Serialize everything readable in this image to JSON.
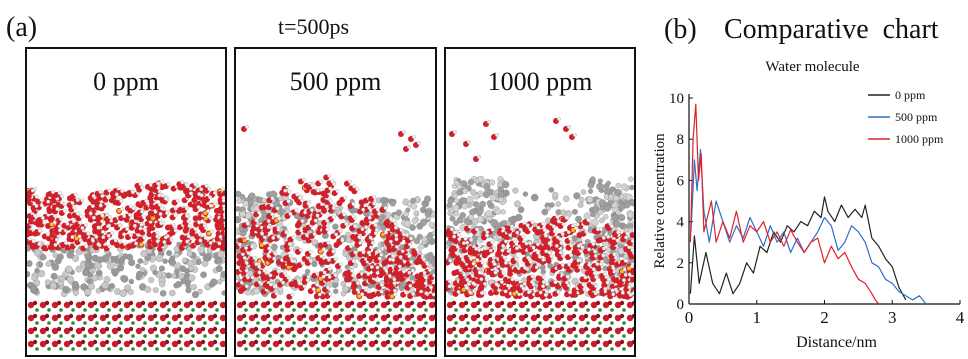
{
  "panel_a": {
    "letter": "(a)",
    "time_label": "t=500ps",
    "panels": [
      {
        "concentration": "0 ppm"
      },
      {
        "concentration": "500 ppm"
      },
      {
        "concentration": "1000 ppm"
      }
    ]
  },
  "panel_b": {
    "letter": "(b)",
    "heading": "Comparative  chart"
  },
  "chart_data": {
    "type": "line",
    "title": "Water molecule",
    "xlabel": "Distance/nm",
    "ylabel": "Relative concentration",
    "xlim": [
      0,
      4
    ],
    "ylim": [
      0,
      10
    ],
    "xticks": [
      "0",
      "1",
      "2",
      "3",
      "4"
    ],
    "yticks": [
      "0",
      "2",
      "4",
      "6",
      "8",
      "10"
    ],
    "legend_position": "top-right",
    "series": [
      {
        "name": "0 ppm",
        "color": "#222222",
        "x": [
          0.02,
          0.08,
          0.15,
          0.25,
          0.35,
          0.45,
          0.55,
          0.65,
          0.75,
          0.85,
          0.95,
          1.05,
          1.15,
          1.25,
          1.35,
          1.45,
          1.55,
          1.65,
          1.75,
          1.85,
          1.95,
          2.0,
          2.05,
          2.15,
          2.25,
          2.35,
          2.45,
          2.55,
          2.6,
          2.7,
          2.8,
          2.9,
          3.0,
          3.1,
          3.2
        ],
        "y": [
          0.5,
          3.3,
          1.0,
          2.5,
          1.0,
          0.5,
          1.5,
          0.5,
          1.0,
          2.0,
          1.5,
          2.8,
          2.5,
          3.5,
          3.0,
          3.8,
          3.5,
          4.0,
          3.8,
          4.5,
          4.2,
          5.2,
          4.5,
          4.0,
          4.8,
          4.2,
          4.6,
          4.2,
          4.8,
          3.2,
          2.8,
          2.2,
          1.8,
          0.8,
          0.2
        ]
      },
      {
        "name": "500 ppm",
        "color": "#2f6fc6",
        "x": [
          0.03,
          0.08,
          0.12,
          0.17,
          0.22,
          0.3,
          0.4,
          0.5,
          0.6,
          0.7,
          0.8,
          0.9,
          1.0,
          1.1,
          1.2,
          1.3,
          1.4,
          1.5,
          1.6,
          1.7,
          1.8,
          1.9,
          2.0,
          2.1,
          2.2,
          2.3,
          2.4,
          2.5,
          2.6,
          2.7,
          2.8,
          2.9,
          3.0,
          3.1,
          3.2,
          3.3,
          3.4,
          3.5
        ],
        "y": [
          3.5,
          7.0,
          5.5,
          7.5,
          4.5,
          3.0,
          5.0,
          4.0,
          3.0,
          3.8,
          3.2,
          4.2,
          3.5,
          2.8,
          3.8,
          3.0,
          3.5,
          2.5,
          3.2,
          2.5,
          3.0,
          3.5,
          4.2,
          3.8,
          2.6,
          3.0,
          3.8,
          3.5,
          3.0,
          2.0,
          1.8,
          1.2,
          1.0,
          0.6,
          0.4,
          0.2,
          0.4,
          0.0
        ]
      },
      {
        "name": "1000 ppm",
        "color": "#e0202a",
        "x": [
          0.02,
          0.06,
          0.1,
          0.14,
          0.18,
          0.22,
          0.27,
          0.33,
          0.4,
          0.5,
          0.6,
          0.7,
          0.8,
          0.9,
          1.0,
          1.1,
          1.2,
          1.3,
          1.4,
          1.5,
          1.6,
          1.7,
          1.8,
          1.9,
          2.0,
          2.1,
          2.2,
          2.3,
          2.4,
          2.5,
          2.6,
          2.7,
          2.75,
          2.8
        ],
        "y": [
          3.0,
          8.0,
          9.7,
          6.0,
          7.3,
          3.5,
          4.2,
          5.0,
          3.0,
          4.0,
          3.2,
          4.5,
          3.0,
          3.8,
          3.5,
          4.0,
          3.0,
          3.5,
          2.8,
          3.6,
          3.0,
          2.5,
          3.0,
          3.2,
          2.0,
          2.8,
          2.2,
          2.5,
          1.8,
          1.2,
          1.0,
          0.5,
          0.2,
          0.0
        ]
      }
    ]
  }
}
